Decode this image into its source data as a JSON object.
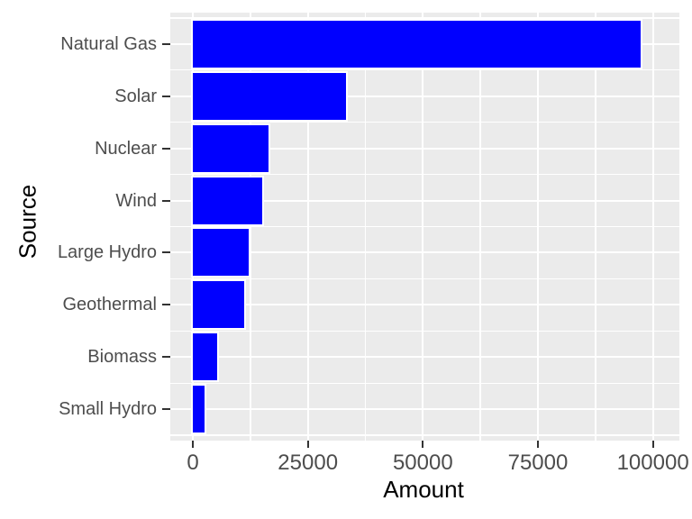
{
  "chart_data": {
    "type": "bar",
    "orientation": "horizontal",
    "title": "",
    "xlabel": "Amount",
    "ylabel": "Source",
    "categories": [
      "Natural Gas",
      "Solar",
      "Nuclear",
      "Wind",
      "Large Hydro",
      "Geothermal",
      "Biomass",
      "Small Hydro"
    ],
    "values": [
      97400,
      33260,
      16480,
      15170,
      12140,
      11120,
      5380,
      2530
    ],
    "x_ticks": [
      0,
      25000,
      50000,
      75000,
      100000
    ],
    "x_tick_labels": [
      "0",
      "25000",
      "50000",
      "75000",
      "100000"
    ],
    "x_minor_ticks": [
      12500,
      37500,
      62500,
      87500
    ],
    "xlim": [
      -4900,
      105750
    ],
    "grid": true,
    "legend": false,
    "colors": {
      "bar_fill": "#0000FF",
      "bar_outline": "#FFFFFF",
      "panel_background": "#EBEBEB",
      "gridline": "#FFFFFF",
      "tick_label": "#4D4D4D",
      "axis_title": "#000000",
      "tick_mark": "#333333"
    }
  }
}
